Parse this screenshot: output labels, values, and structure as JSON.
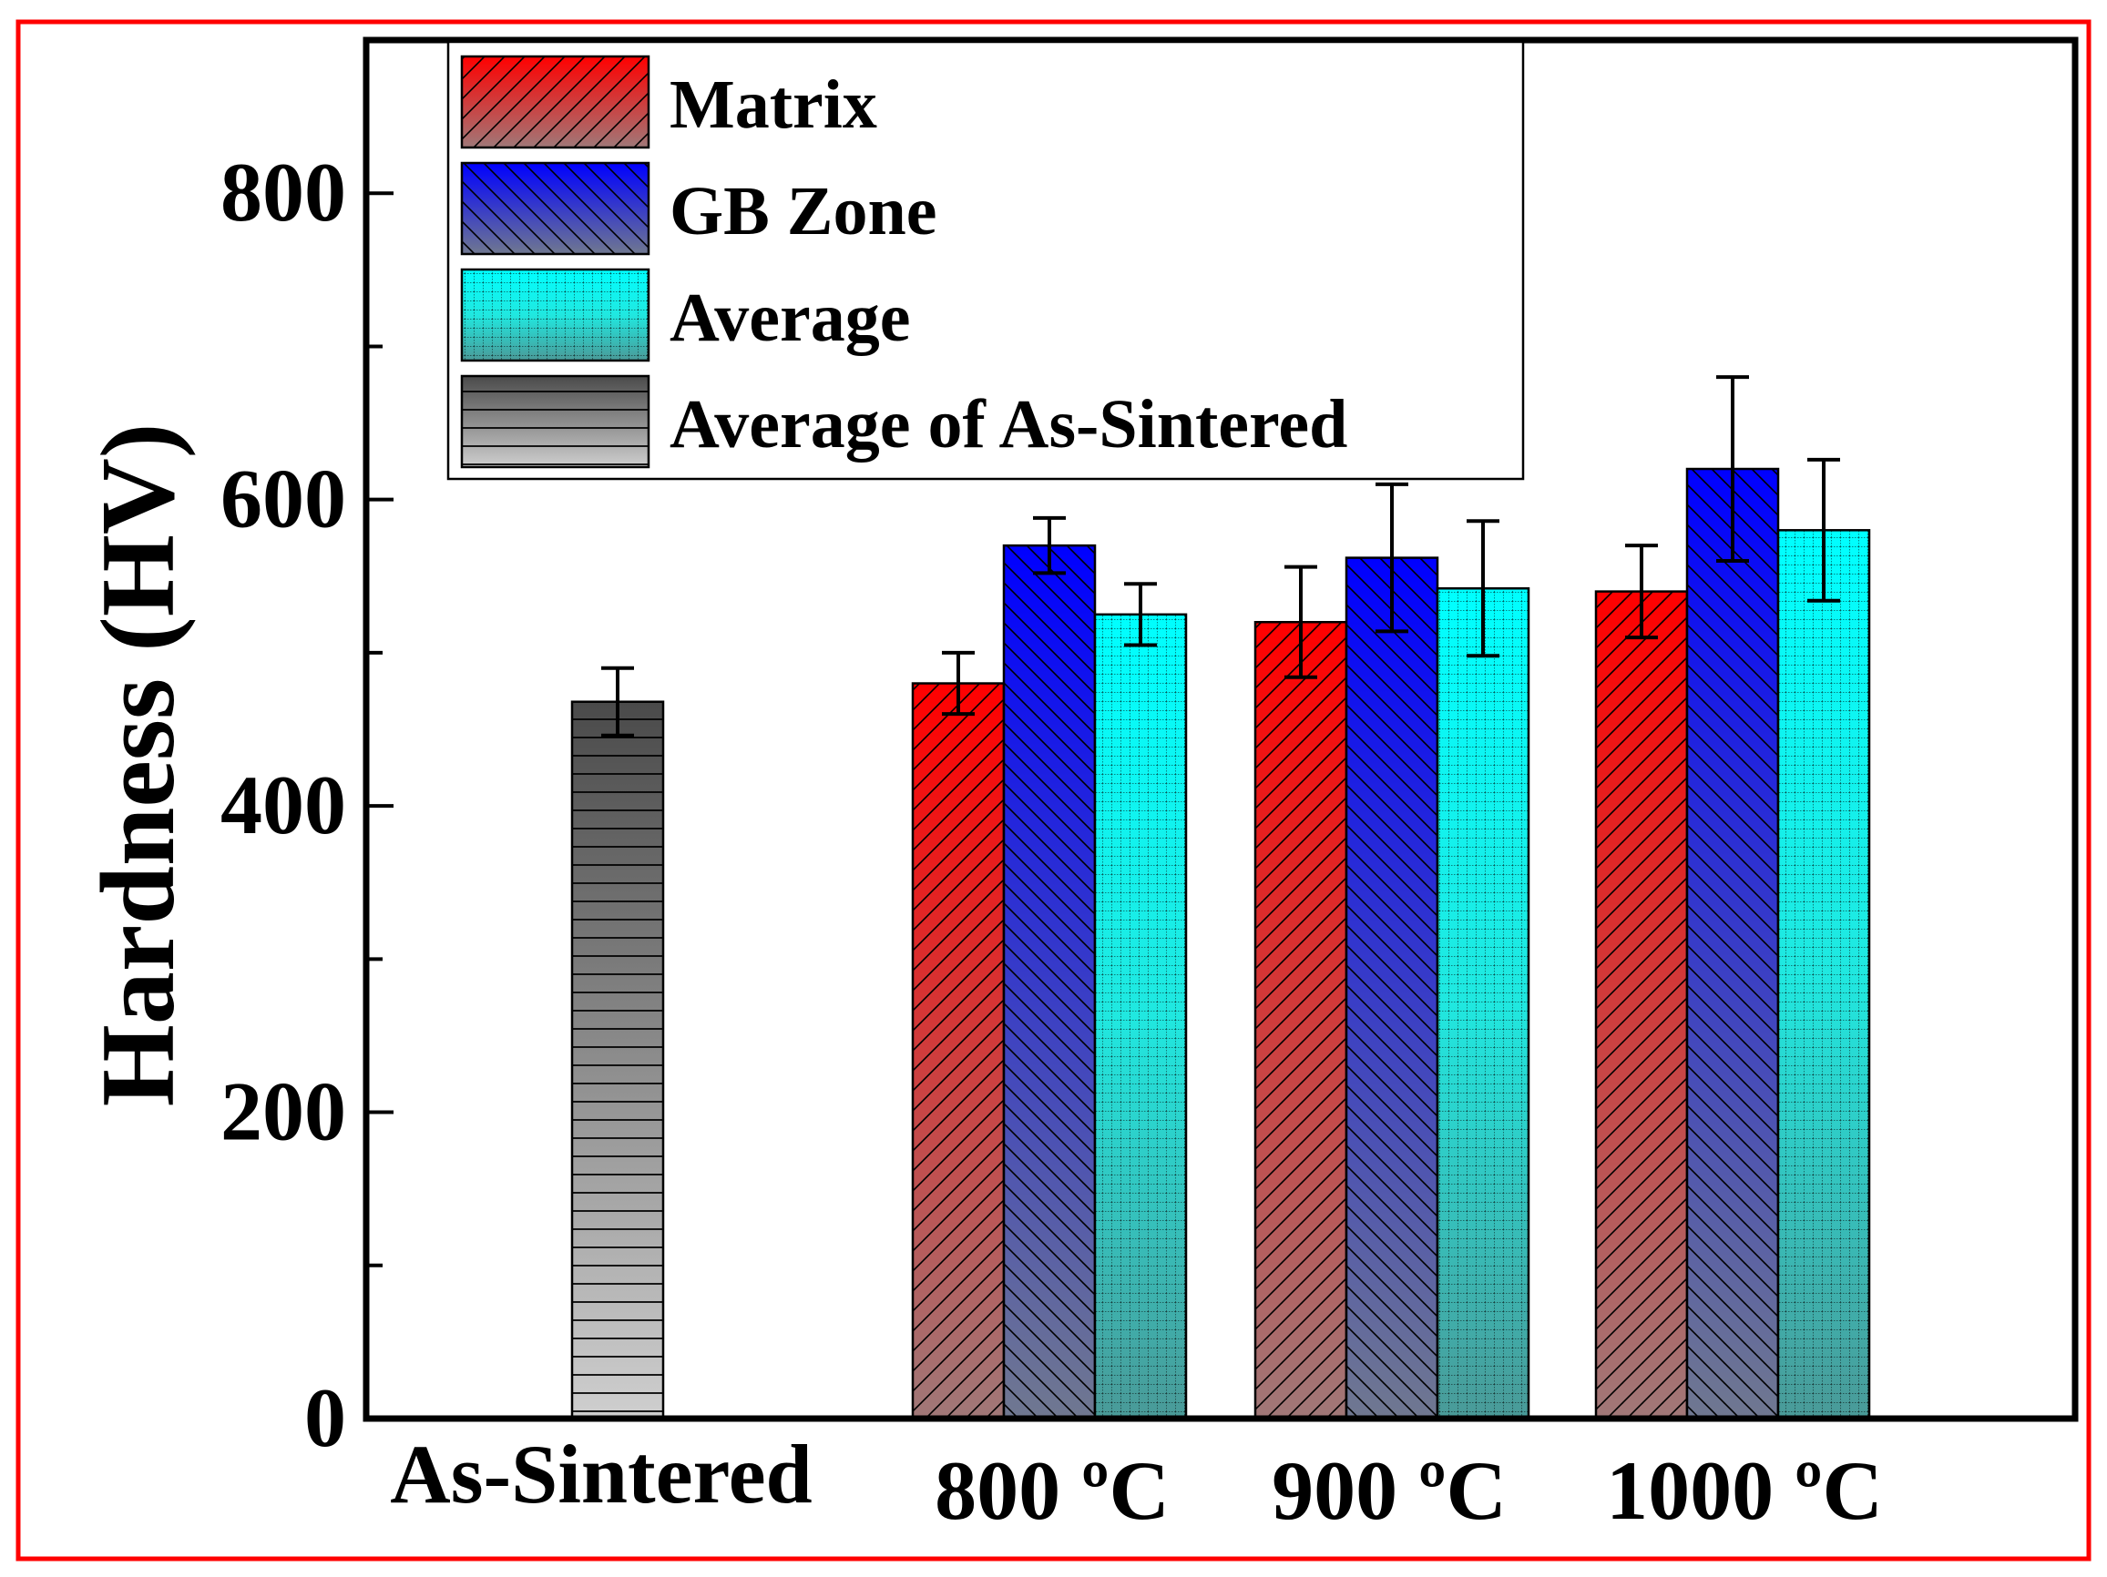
{
  "chart_data": {
    "type": "bar",
    "ylabel": "Hardness (HV)",
    "xlabel": "",
    "ylim": [
      0,
      900
    ],
    "yticks": [
      0,
      200,
      400,
      600,
      800
    ],
    "categories": [
      "As-Sintered",
      "800 ºC",
      "900 ºC",
      "1000 ºC"
    ],
    "series": [
      {
        "name": "Matrix",
        "key": "matrix",
        "color": "#ff0000",
        "pattern": "diagonal-up",
        "values": [
          null,
          480,
          520,
          540
        ],
        "errors": [
          null,
          20,
          36,
          30
        ]
      },
      {
        "name": "GB Zone",
        "key": "gb",
        "color": "#0000ff",
        "pattern": "diagonal-down",
        "values": [
          null,
          570,
          562,
          620
        ],
        "errors": [
          null,
          18,
          48,
          60
        ]
      },
      {
        "name": "Average",
        "key": "avg",
        "color": "#00ffff",
        "pattern": "grid-dots",
        "values": [
          null,
          525,
          542,
          580
        ],
        "errors": [
          null,
          20,
          44,
          46
        ]
      },
      {
        "name": "Average of As-Sintered",
        "key": "asint",
        "color": "#555555",
        "pattern": "horizontal",
        "values": [
          468,
          null,
          null,
          null
        ],
        "errors": [
          22,
          null,
          null,
          null
        ]
      }
    ],
    "legend_position": "top-left",
    "grid": false
  }
}
